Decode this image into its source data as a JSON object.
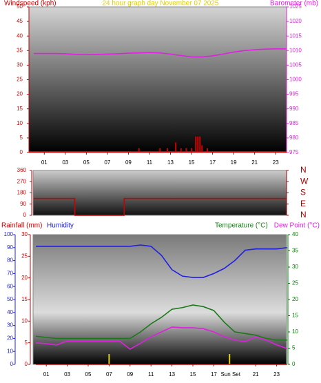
{
  "chart_data": [
    {
      "type": "line",
      "title": "24 hour graph day  November 07 2025",
      "xlim": [
        0,
        24
      ],
      "xticks": [
        {
          "value": 1,
          "label": "01"
        },
        {
          "value": 3,
          "label": "03"
        },
        {
          "value": 5,
          "label": "05"
        },
        {
          "value": 7,
          "label": "07"
        },
        {
          "value": 9,
          "label": "09"
        },
        {
          "value": 11,
          "label": "11"
        },
        {
          "value": 13,
          "label": "13"
        },
        {
          "value": 15,
          "label": "15"
        },
        {
          "value": 17,
          "label": "17"
        },
        {
          "value": 19,
          "label": "19"
        },
        {
          "value": 21,
          "label": "21"
        },
        {
          "value": 23,
          "label": "23"
        }
      ],
      "ylim": [
        0,
        50
      ],
      "yticks": [
        0,
        5,
        10,
        15,
        20,
        25,
        30,
        35,
        40,
        45,
        50
      ],
      "y2lim": [
        975,
        1025
      ],
      "y2ticks": [
        975,
        980,
        985,
        990,
        995,
        1000,
        1005,
        1010,
        1015,
        1020,
        1025
      ],
      "series": [
        {
          "name": "Windspeed (kph)",
          "color": "#cc0000",
          "kind": "bar",
          "x": [
            10,
            12,
            12.7,
            13.5,
            14,
            14.5,
            15,
            15.4,
            15.6,
            15.8,
            16,
            16.5
          ],
          "values": [
            1.5,
            1.5,
            1.5,
            3.5,
            1.5,
            1.5,
            1.5,
            5.5,
            5.5,
            5.5,
            2.5,
            1.5
          ]
        },
        {
          "name": "Barometer (mb)",
          "color": "#e020e0",
          "axis": "y2",
          "x": [
            0,
            1,
            2,
            3,
            4,
            5,
            6,
            7,
            8,
            9,
            10,
            11,
            12,
            13,
            14,
            15,
            16,
            17,
            18,
            19,
            20,
            21,
            22,
            23,
            24
          ],
          "values": [
            1009.0,
            1009.0,
            1009.0,
            1008.9,
            1008.7,
            1008.6,
            1008.7,
            1008.8,
            1008.9,
            1009.1,
            1009.2,
            1009.3,
            1009.2,
            1008.8,
            1008.3,
            1007.8,
            1007.8,
            1008.2,
            1008.8,
            1009.5,
            1010.0,
            1010.3,
            1010.5,
            1010.6,
            1010.6
          ]
        }
      ]
    },
    {
      "type": "line",
      "xlim": [
        0,
        24
      ],
      "ylim": [
        0,
        360
      ],
      "yticks": [
        0,
        90,
        180,
        270,
        360
      ],
      "y2lim": [
        0,
        360
      ],
      "y2ticks": [
        {
          "value": 360,
          "label": "N"
        },
        {
          "value": 270,
          "label": "W"
        },
        {
          "value": 180,
          "label": "S"
        },
        {
          "value": 90,
          "label": "E"
        },
        {
          "value": 0,
          "label": "N"
        }
      ],
      "series": [
        {
          "color": "#cc0000",
          "x": [
            0,
            3.9,
            3.9,
            8.6,
            8.6,
            24
          ],
          "values": [
            135,
            135,
            0,
            0,
            135,
            135
          ]
        }
      ]
    },
    {
      "type": "line",
      "xlim": [
        0,
        24
      ],
      "xticks": [
        {
          "value": 1,
          "label": "01"
        },
        {
          "value": 3,
          "label": "03"
        },
        {
          "value": 5,
          "label": "05"
        },
        {
          "value": 7,
          "label": "07"
        },
        {
          "value": 9,
          "label": "09"
        },
        {
          "value": 11,
          "label": "11"
        },
        {
          "value": 13,
          "label": "13"
        },
        {
          "value": 15,
          "label": "15"
        },
        {
          "value": 17,
          "label": "17"
        },
        {
          "value": 21,
          "label": "21"
        },
        {
          "value": 23,
          "label": "23"
        }
      ],
      "annotation": {
        "text": "Sun Set",
        "x": 18.6
      },
      "sun_events_x": [
        7,
        18.5
      ],
      "ylim": [
        0,
        100
      ],
      "yticks": [
        0,
        10,
        20,
        30,
        40,
        50,
        60,
        70,
        80,
        90,
        100
      ],
      "y3lim": [
        0,
        30
      ],
      "y3ticks": [
        0,
        5,
        10,
        15,
        20,
        25,
        30
      ],
      "y2lim": [
        0,
        40
      ],
      "y2ticks": [
        0,
        5,
        10,
        15,
        20,
        25,
        30,
        35,
        40
      ],
      "x": [
        0,
        1,
        2,
        3,
        4,
        5,
        6,
        7,
        8,
        9,
        10,
        11,
        12,
        13,
        14,
        15,
        16,
        17,
        18,
        19,
        20,
        21,
        22,
        23,
        24
      ],
      "series": [
        {
          "name": "Rainfall (mm)",
          "color": "#cc0000",
          "axis": "y3",
          "values": [
            0,
            0,
            0,
            0,
            0,
            0,
            0,
            0,
            0,
            0,
            0,
            0,
            0,
            0,
            0,
            0,
            0,
            0,
            0,
            0,
            0,
            0,
            0,
            0,
            0
          ]
        },
        {
          "name": "Humidity",
          "color": "#2020e0",
          "values": [
            91,
            91,
            91,
            91,
            91,
            91,
            91,
            91,
            91,
            91,
            92,
            91,
            84,
            73,
            68,
            67,
            67,
            70,
            74,
            80,
            88,
            89,
            89,
            89,
            90
          ]
        },
        {
          "name": "Temperature (°C)",
          "color": "#1a7a1a",
          "axis": "y2",
          "values": [
            8.7,
            8.3,
            8.0,
            8.0,
            8.0,
            8.0,
            8.0,
            8.0,
            8.0,
            8.0,
            10,
            12.5,
            14.5,
            17,
            17.5,
            18.3,
            17.8,
            16.6,
            13,
            10,
            9.5,
            9,
            8,
            7.5,
            7.5
          ]
        },
        {
          "name": "Dew Point (°C)",
          "color": "#e020e0",
          "axis": "y2",
          "values": [
            6.6,
            6.4,
            6.0,
            7.2,
            7.2,
            7.2,
            7.2,
            7.2,
            7.2,
            4.7,
            6.5,
            8.5,
            10,
            11.5,
            11.3,
            11.3,
            11,
            10,
            8.5,
            7.5,
            7.0,
            8.5,
            7.5,
            6,
            4.9
          ]
        }
      ]
    }
  ]
}
